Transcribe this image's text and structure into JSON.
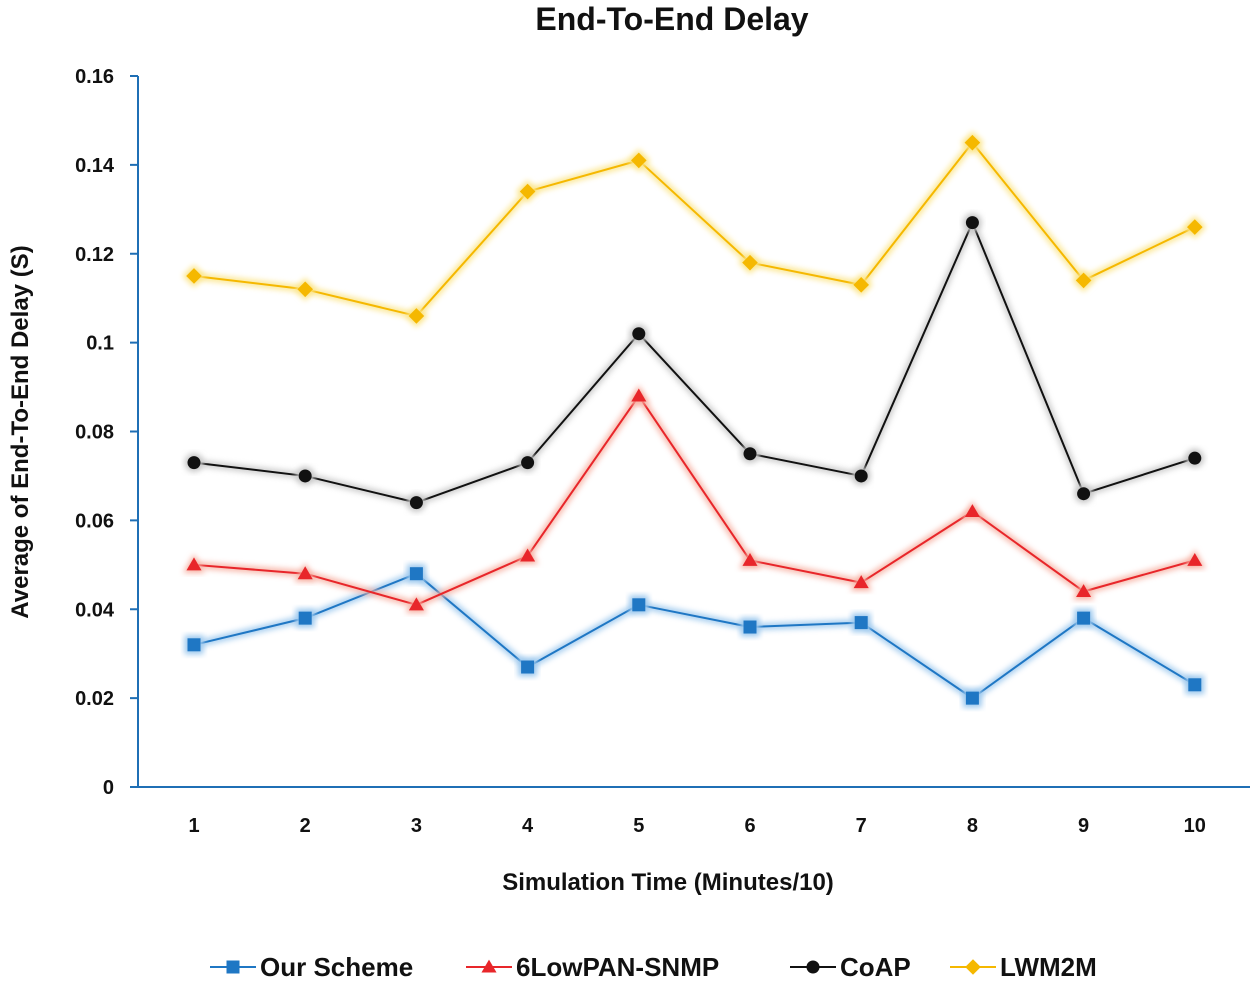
{
  "chart_data": {
    "type": "line",
    "title": "End-To-End Delay",
    "xlabel": "Simulation Time (Minutes/10)",
    "ylabel": "Average of End-To-End Delay (S)",
    "categories": [
      "1",
      "2",
      "3",
      "4",
      "5",
      "6",
      "7",
      "8",
      "9",
      "10"
    ],
    "ylim": [
      0,
      0.16
    ],
    "yticks": [
      "0",
      "0.02",
      "0.04",
      "0.06",
      "0.08",
      "0.1",
      "0.12",
      "0.14",
      "0.16"
    ],
    "grid": false,
    "legend_position": "bottom",
    "series": [
      {
        "name": "Our Scheme",
        "color": "#1f77c4",
        "glow": "#9ec9ee",
        "marker": "square",
        "values": [
          0.032,
          0.038,
          0.048,
          0.027,
          0.041,
          0.036,
          0.037,
          0.02,
          0.038,
          0.023
        ]
      },
      {
        "name": "6LowPAN-SNMP",
        "color": "#e8262a",
        "glow": "#f7b2a4",
        "marker": "triangle",
        "values": [
          0.05,
          0.048,
          0.041,
          0.052,
          0.088,
          0.051,
          0.046,
          0.062,
          0.044,
          0.051
        ]
      },
      {
        "name": "CoAP",
        "color": "#111111",
        "glow": "#c9c9c9",
        "marker": "circle",
        "values": [
          0.073,
          0.07,
          0.064,
          0.073,
          0.102,
          0.075,
          0.07,
          0.127,
          0.066,
          0.074
        ]
      },
      {
        "name": "LWM2M",
        "color": "#f5b800",
        "glow": "#fbe58a",
        "marker": "diamond",
        "values": [
          0.115,
          0.112,
          0.106,
          0.134,
          0.141,
          0.118,
          0.113,
          0.145,
          0.114,
          0.126
        ]
      }
    ]
  }
}
